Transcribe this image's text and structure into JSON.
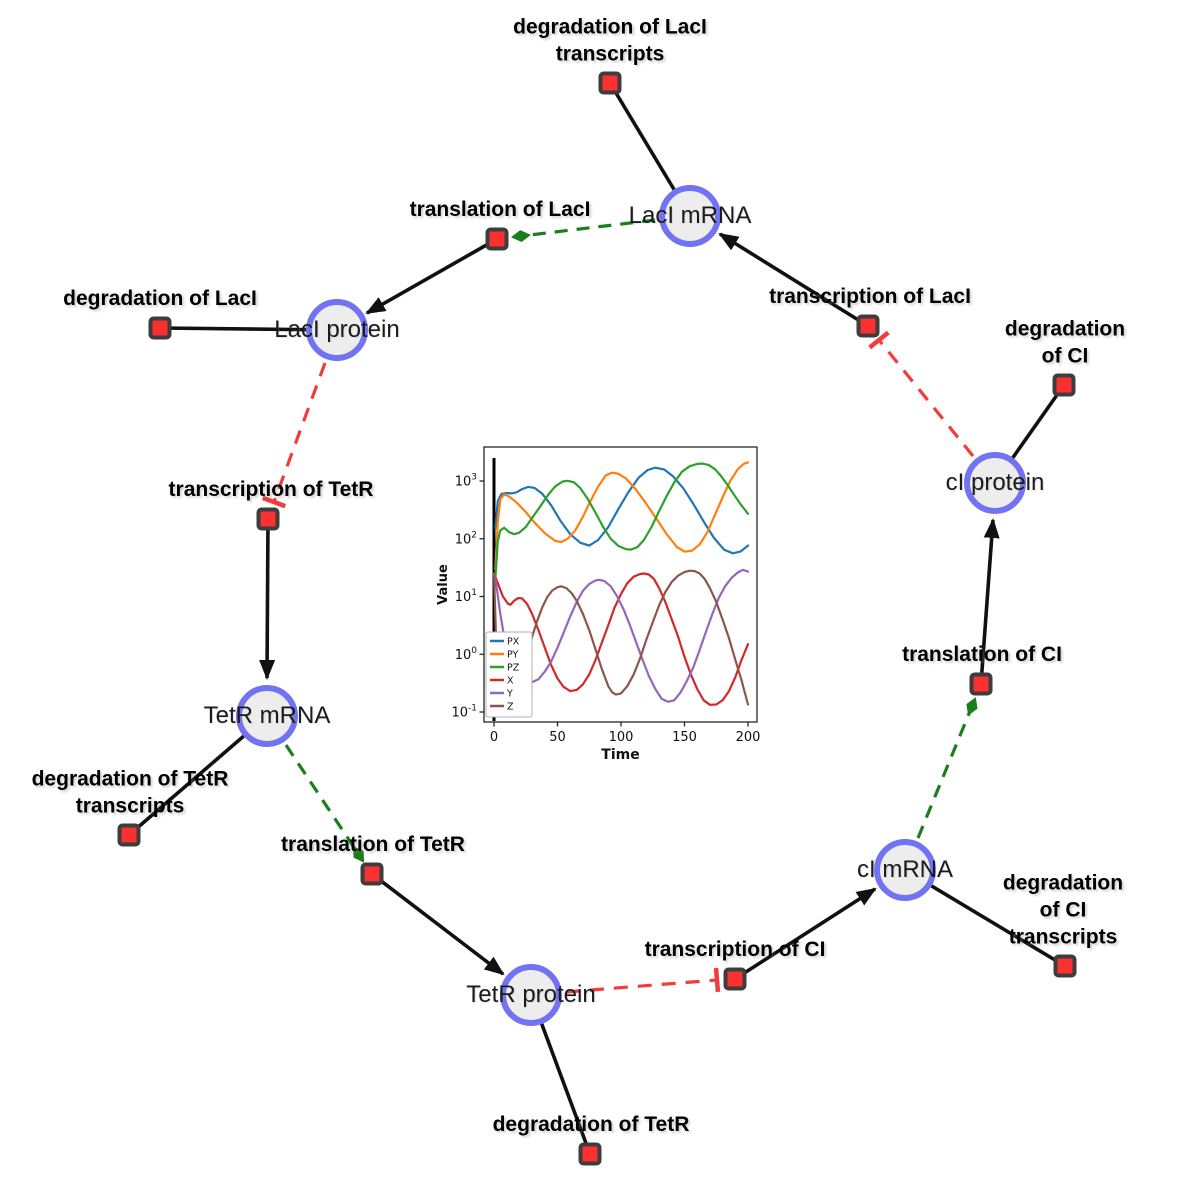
{
  "diagram": {
    "species": [
      {
        "id": "laci-mrna",
        "label": "LacI mRNA"
      },
      {
        "id": "laci-protein",
        "label": "LacI protein"
      },
      {
        "id": "tetr-mrna",
        "label": "TetR mRNA"
      },
      {
        "id": "tetr-protein",
        "label": "TetR protein"
      },
      {
        "id": "ci-mrna",
        "label": "cI mRNA"
      },
      {
        "id": "ci-protein",
        "label": "cI protein"
      }
    ],
    "reactions": [
      {
        "id": "deg-laci-transcripts",
        "label": "degradation of LacI\ntranscripts"
      },
      {
        "id": "translation-laci",
        "label": "translation of LacI"
      },
      {
        "id": "deg-laci",
        "label": "degradation of LacI"
      },
      {
        "id": "transcription-laci",
        "label": "transcription of LacI"
      },
      {
        "id": "deg-ci",
        "label": "degradation of CI"
      },
      {
        "id": "transcription-tetr",
        "label": "transcription of TetR"
      },
      {
        "id": "deg-tetr-transcripts",
        "label": "degradation of TetR\ntranscripts"
      },
      {
        "id": "translation-tetr",
        "label": "translation of TetR"
      },
      {
        "id": "deg-tetr",
        "label": "degradation of TetR"
      },
      {
        "id": "transcription-ci",
        "label": "transcription of CI"
      },
      {
        "id": "deg-ci-transcripts",
        "label": "degradation of CI\ntranscripts"
      },
      {
        "id": "translation-ci",
        "label": "translation of CI"
      }
    ],
    "edges": [
      {
        "from": "LacI mRNA",
        "to": "degradation of LacI transcripts",
        "type": "reactant"
      },
      {
        "from": "translation of LacI",
        "to": "LacI protein",
        "type": "product"
      },
      {
        "from": "LacI protein",
        "to": "degradation of LacI",
        "type": "reactant"
      },
      {
        "from": "transcription of LacI",
        "to": "LacI mRNA",
        "type": "product"
      },
      {
        "from": "cI protein",
        "to": "degradation of CI",
        "type": "reactant"
      },
      {
        "from": "transcription of TetR",
        "to": "TetR mRNA",
        "type": "product"
      },
      {
        "from": "TetR mRNA",
        "to": "degradation of TetR transcripts",
        "type": "reactant"
      },
      {
        "from": "translation of TetR",
        "to": "TetR protein",
        "type": "product"
      },
      {
        "from": "TetR protein",
        "to": "degradation of TetR",
        "type": "reactant"
      },
      {
        "from": "transcription of CI",
        "to": "cI mRNA",
        "type": "product"
      },
      {
        "from": "cI mRNA",
        "to": "degradation of CI transcripts",
        "type": "reactant"
      },
      {
        "from": "translation of CI",
        "to": "cI protein",
        "type": "product"
      },
      {
        "from": "LacI mRNA",
        "to": "translation of LacI",
        "type": "modifier"
      },
      {
        "from": "TetR mRNA",
        "to": "translation of TetR",
        "type": "modifier"
      },
      {
        "from": "cI mRNA",
        "to": "translation of CI",
        "type": "modifier"
      },
      {
        "from": "LacI protein",
        "to": "transcription of TetR",
        "type": "inhibition"
      },
      {
        "from": "TetR protein",
        "to": "transcription of CI",
        "type": "inhibition"
      },
      {
        "from": "cI protein",
        "to": "transcription of LacI",
        "type": "inhibition"
      }
    ],
    "colors": {
      "species_fill": "#ededed",
      "species_border": "#7273f2",
      "reaction_fill": "#fb3030",
      "reaction_border": "#3d3d3d",
      "edge_black": "#111111",
      "edge_modifier_green": "#1a7f1a",
      "edge_inhibition_red": "#f23b3b"
    }
  },
  "chart_data": {
    "type": "line",
    "title": "",
    "xlabel": "Time",
    "ylabel": "Value",
    "yscale": "log",
    "xlim": [
      -8,
      207
    ],
    "ylim": [
      0.068,
      3900
    ],
    "xticks": [
      0,
      50,
      100,
      150,
      200
    ],
    "ytick_exponents": [
      3,
      2,
      1,
      0,
      -1
    ],
    "vline_at_x": 0,
    "legend_position": "lower left",
    "series": [
      {
        "name": "PX",
        "color": "#1f77b4",
        "points": [
          [
            1,
            150
          ],
          [
            3,
            450
          ],
          [
            6,
            600
          ],
          [
            10,
            620
          ],
          [
            14,
            610
          ],
          [
            18,
            640
          ],
          [
            22,
            720
          ],
          [
            27,
            790
          ],
          [
            32,
            760
          ],
          [
            38,
            600
          ],
          [
            45,
            380
          ],
          [
            52,
            210
          ],
          [
            60,
            120
          ],
          [
            68,
            85
          ],
          [
            75,
            76
          ],
          [
            82,
            95
          ],
          [
            90,
            160
          ],
          [
            98,
            330
          ],
          [
            106,
            650
          ],
          [
            114,
            1150
          ],
          [
            121,
            1550
          ],
          [
            127,
            1700
          ],
          [
            134,
            1580
          ],
          [
            141,
            1200
          ],
          [
            149,
            750
          ],
          [
            157,
            400
          ],
          [
            165,
            200
          ],
          [
            173,
            105
          ],
          [
            181,
            65
          ],
          [
            188,
            56
          ],
          [
            194,
            60
          ],
          [
            200,
            76
          ]
        ]
      },
      {
        "name": "PY",
        "color": "#ff7f0e",
        "points": [
          [
            1,
            30
          ],
          [
            3,
            200
          ],
          [
            5,
            480
          ],
          [
            8,
            590
          ],
          [
            12,
            540
          ],
          [
            18,
            420
          ],
          [
            25,
            290
          ],
          [
            32,
            190
          ],
          [
            40,
            125
          ],
          [
            48,
            92
          ],
          [
            53,
            88
          ],
          [
            58,
            100
          ],
          [
            64,
            140
          ],
          [
            70,
            240
          ],
          [
            76,
            450
          ],
          [
            82,
            800
          ],
          [
            88,
            1250
          ],
          [
            93,
            1400
          ],
          [
            98,
            1330
          ],
          [
            104,
            1100
          ],
          [
            112,
            700
          ],
          [
            120,
            400
          ],
          [
            128,
            220
          ],
          [
            136,
            120
          ],
          [
            144,
            72
          ],
          [
            150,
            60
          ],
          [
            156,
            62
          ],
          [
            162,
            80
          ],
          [
            168,
            130
          ],
          [
            174,
            260
          ],
          [
            180,
            520
          ],
          [
            186,
            1000
          ],
          [
            192,
            1600
          ],
          [
            197,
            2000
          ],
          [
            200,
            2100
          ]
        ]
      },
      {
        "name": "PZ",
        "color": "#2ca02c",
        "points": [
          [
            1,
            20
          ],
          [
            3,
            90
          ],
          [
            5,
            140
          ],
          [
            8,
            155
          ],
          [
            12,
            130
          ],
          [
            16,
            120
          ],
          [
            20,
            128
          ],
          [
            25,
            160
          ],
          [
            30,
            230
          ],
          [
            36,
            350
          ],
          [
            42,
            550
          ],
          [
            48,
            800
          ],
          [
            54,
            980
          ],
          [
            58,
            1010
          ],
          [
            63,
            950
          ],
          [
            68,
            750
          ],
          [
            74,
            480
          ],
          [
            80,
            280
          ],
          [
            86,
            160
          ],
          [
            92,
            100
          ],
          [
            98,
            75
          ],
          [
            104,
            66
          ],
          [
            108,
            65
          ],
          [
            113,
            72
          ],
          [
            118,
            95
          ],
          [
            124,
            160
          ],
          [
            130,
            300
          ],
          [
            136,
            550
          ],
          [
            142,
            950
          ],
          [
            148,
            1450
          ],
          [
            154,
            1800
          ],
          [
            160,
            1980
          ],
          [
            164,
            2000
          ],
          [
            169,
            1900
          ],
          [
            174,
            1600
          ],
          [
            179,
            1200
          ],
          [
            184,
            850
          ],
          [
            189,
            580
          ],
          [
            194,
            400
          ],
          [
            200,
            270
          ]
        ]
      },
      {
        "name": "X",
        "color": "#d62728",
        "points": [
          [
            0,
            25
          ],
          [
            3,
            17
          ],
          [
            7,
            10
          ],
          [
            11,
            7.5
          ],
          [
            13,
            7.2
          ],
          [
            16,
            8.5
          ],
          [
            19,
            9.4
          ],
          [
            22,
            9.3
          ],
          [
            26,
            7.5
          ],
          [
            30,
            5
          ],
          [
            35,
            2.6
          ],
          [
            40,
            1.3
          ],
          [
            45,
            0.65
          ],
          [
            50,
            0.38
          ],
          [
            55,
            0.27
          ],
          [
            60,
            0.23
          ],
          [
            65,
            0.24
          ],
          [
            70,
            0.3
          ],
          [
            75,
            0.45
          ],
          [
            80,
            0.8
          ],
          [
            85,
            1.6
          ],
          [
            90,
            3.2
          ],
          [
            95,
            6.5
          ],
          [
            100,
            11
          ],
          [
            105,
            17
          ],
          [
            110,
            22
          ],
          [
            115,
            24.5
          ],
          [
            118,
            25
          ],
          [
            122,
            24
          ],
          [
            126,
            20
          ],
          [
            130,
            14
          ],
          [
            135,
            8
          ],
          [
            140,
            4
          ],
          [
            145,
            2
          ],
          [
            150,
            0.9
          ],
          [
            155,
            0.45
          ],
          [
            160,
            0.25
          ],
          [
            165,
            0.16
          ],
          [
            170,
            0.133
          ],
          [
            175,
            0.135
          ],
          [
            180,
            0.16
          ],
          [
            185,
            0.23
          ],
          [
            190,
            0.4
          ],
          [
            195,
            0.8
          ],
          [
            200,
            1.5
          ]
        ]
      },
      {
        "name": "Y",
        "color": "#9467bd",
        "points": [
          [
            0,
            25
          ],
          [
            2,
            15
          ],
          [
            5,
            5
          ],
          [
            8,
            2
          ],
          [
            12,
            0.9
          ],
          [
            16,
            0.55
          ],
          [
            20,
            0.42
          ],
          [
            25,
            0.35
          ],
          [
            30,
            0.33
          ],
          [
            35,
            0.37
          ],
          [
            40,
            0.5
          ],
          [
            45,
            0.75
          ],
          [
            50,
            1.3
          ],
          [
            55,
            2.4
          ],
          [
            60,
            4.5
          ],
          [
            65,
            8
          ],
          [
            70,
            12.5
          ],
          [
            75,
            16.5
          ],
          [
            80,
            19
          ],
          [
            83,
            19.5
          ],
          [
            87,
            18.5
          ],
          [
            92,
            15
          ],
          [
            97,
            10
          ],
          [
            102,
            6
          ],
          [
            107,
            3.2
          ],
          [
            112,
            1.6
          ],
          [
            117,
            0.8
          ],
          [
            122,
            0.42
          ],
          [
            127,
            0.25
          ],
          [
            132,
            0.17
          ],
          [
            137,
            0.15
          ],
          [
            142,
            0.16
          ],
          [
            147,
            0.22
          ],
          [
            152,
            0.35
          ],
          [
            157,
            0.6
          ],
          [
            162,
            1.2
          ],
          [
            167,
            2.5
          ],
          [
            172,
            5
          ],
          [
            177,
            9.5
          ],
          [
            182,
            15
          ],
          [
            187,
            21
          ],
          [
            192,
            26
          ],
          [
            196,
            29
          ],
          [
            200,
            27
          ]
        ]
      },
      {
        "name": "Z",
        "color": "#8c564b",
        "points": [
          [
            0,
            25
          ],
          [
            1,
            5
          ],
          [
            2,
            1
          ],
          [
            3,
            0.3
          ],
          [
            5,
            0.1
          ],
          [
            8,
            0.09
          ],
          [
            12,
            0.12
          ],
          [
            16,
            0.2
          ],
          [
            20,
            0.4
          ],
          [
            25,
            0.9
          ],
          [
            30,
            2
          ],
          [
            34,
            3.8
          ],
          [
            38,
            6.5
          ],
          [
            42,
            9.8
          ],
          [
            46,
            12.8
          ],
          [
            50,
            14.5
          ],
          [
            53,
            15
          ],
          [
            57,
            14
          ],
          [
            61,
            11.5
          ],
          [
            65,
            8.5
          ],
          [
            70,
            5
          ],
          [
            75,
            2.6
          ],
          [
            80,
            1.2
          ],
          [
            85,
            0.55
          ],
          [
            90,
            0.28
          ],
          [
            93,
            0.22
          ],
          [
            96,
            0.2
          ],
          [
            100,
            0.21
          ],
          [
            105,
            0.28
          ],
          [
            110,
            0.45
          ],
          [
            115,
            0.85
          ],
          [
            120,
            1.8
          ],
          [
            125,
            3.6
          ],
          [
            130,
            7
          ],
          [
            135,
            12
          ],
          [
            140,
            18
          ],
          [
            145,
            23
          ],
          [
            150,
            26.5
          ],
          [
            154,
            28
          ],
          [
            158,
            27.5
          ],
          [
            162,
            25
          ],
          [
            166,
            20
          ],
          [
            170,
            14
          ],
          [
            175,
            8
          ],
          [
            180,
            4
          ],
          [
            185,
            1.9
          ],
          [
            190,
            0.8
          ],
          [
            195,
            0.35
          ],
          [
            200,
            0.135
          ]
        ]
      }
    ]
  }
}
